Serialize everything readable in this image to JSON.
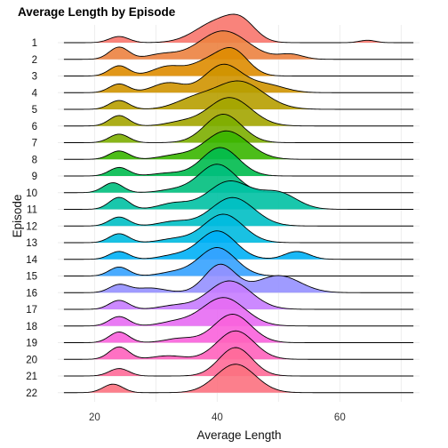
{
  "chart_data": {
    "type": "ridgeline",
    "title": "Average Length by Episode",
    "xlabel": "Average Length",
    "ylabel": "Episode",
    "xlim": [
      14,
      73
    ],
    "xticks": [
      20,
      40,
      60
    ],
    "grid": true,
    "legend": "none",
    "series": [
      {
        "name": "1",
        "color": "#F8766D",
        "components": [
          [
            24,
            1.6,
            0.18
          ],
          [
            40,
            3.5,
            0.6
          ],
          [
            44,
            2.3,
            0.45
          ],
          [
            64.5,
            1.3,
            0.07
          ]
        ]
      },
      {
        "name": "2",
        "color": "#EC8240",
        "components": [
          [
            24,
            1.6,
            0.3
          ],
          [
            31,
            2.5,
            0.12
          ],
          [
            41,
            4.0,
            0.7
          ],
          [
            52,
            2.0,
            0.12
          ]
        ]
      },
      {
        "name": "3",
        "color": "#DE8C00",
        "components": [
          [
            24,
            1.6,
            0.3
          ],
          [
            32,
            2.5,
            0.28
          ],
          [
            38,
            2.5,
            0.35
          ],
          [
            42.5,
            2.5,
            0.75
          ]
        ]
      },
      {
        "name": "4",
        "color": "#CF9400",
        "components": [
          [
            24,
            1.6,
            0.25
          ],
          [
            32,
            2.5,
            0.28
          ],
          [
            41,
            3.0,
            0.8
          ],
          [
            48,
            3.0,
            0.22
          ]
        ]
      },
      {
        "name": "5",
        "color": "#B79F00",
        "components": [
          [
            24,
            1.6,
            0.3
          ],
          [
            36,
            3.0,
            0.3
          ],
          [
            43.5,
            4.0,
            0.95
          ]
        ]
      },
      {
        "name": "6",
        "color": "#A3A500",
        "components": [
          [
            24,
            1.6,
            0.35
          ],
          [
            34,
            2.5,
            0.12
          ],
          [
            42,
            3.5,
            0.95
          ]
        ]
      },
      {
        "name": "7",
        "color": "#7CAE00",
        "components": [
          [
            24,
            1.6,
            0.3
          ],
          [
            41,
            3.0,
            1.0
          ]
        ]
      },
      {
        "name": "8",
        "color": "#39B600",
        "components": [
          [
            24,
            1.6,
            0.28
          ],
          [
            33,
            2.5,
            0.12
          ],
          [
            41.5,
            3.5,
            0.95
          ]
        ]
      },
      {
        "name": "9",
        "color": "#00BB4E",
        "components": [
          [
            24,
            1.6,
            0.3
          ],
          [
            32,
            2.5,
            0.1
          ],
          [
            40.5,
            3.0,
            1.0
          ]
        ]
      },
      {
        "name": "10",
        "color": "#00BF7D",
        "components": [
          [
            23,
            1.6,
            0.35
          ],
          [
            33,
            2.5,
            0.1
          ],
          [
            40,
            3.0,
            1.0
          ]
        ]
      },
      {
        "name": "11",
        "color": "#00C1A3",
        "components": [
          [
            24,
            1.6,
            0.3
          ],
          [
            33,
            2.5,
            0.15
          ],
          [
            42,
            3.5,
            0.7
          ],
          [
            50,
            3.0,
            0.4
          ]
        ]
      },
      {
        "name": "12",
        "color": "#00BFC4",
        "components": [
          [
            24,
            1.6,
            0.3
          ],
          [
            33,
            2.5,
            0.15
          ],
          [
            42.5,
            3.5,
            0.95
          ]
        ]
      },
      {
        "name": "13",
        "color": "#00BAE0",
        "components": [
          [
            24,
            1.6,
            0.3
          ],
          [
            33,
            2.5,
            0.12
          ],
          [
            41,
            3.2,
            0.95
          ]
        ]
      },
      {
        "name": "14",
        "color": "#00B0F6",
        "components": [
          [
            24,
            1.6,
            0.25
          ],
          [
            33,
            2.5,
            0.12
          ],
          [
            40,
            3.0,
            0.9
          ],
          [
            53,
            2.0,
            0.25
          ]
        ]
      },
      {
        "name": "15",
        "color": "#35A2FF",
        "components": [
          [
            24,
            1.6,
            0.3
          ],
          [
            33,
            2.5,
            0.12
          ],
          [
            40,
            3.0,
            0.95
          ]
        ]
      },
      {
        "name": "16",
        "color": "#9590FF",
        "components": [
          [
            24,
            1.6,
            0.25
          ],
          [
            29,
            2.5,
            0.15
          ],
          [
            40.5,
            2.5,
            0.9
          ],
          [
            50,
            3.5,
            0.55
          ]
        ]
      },
      {
        "name": "17",
        "color": "#C77CFF",
        "components": [
          [
            24,
            1.6,
            0.3
          ],
          [
            33,
            2.5,
            0.12
          ],
          [
            42,
            3.5,
            0.95
          ]
        ]
      },
      {
        "name": "18",
        "color": "#E76BF3",
        "components": [
          [
            24,
            1.6,
            0.3
          ],
          [
            33,
            2.5,
            0.12
          ],
          [
            41,
            3.5,
            0.9
          ]
        ]
      },
      {
        "name": "19",
        "color": "#FA62DB",
        "components": [
          [
            24,
            1.6,
            0.3
          ],
          [
            34,
            2.5,
            0.12
          ],
          [
            42.5,
            3.0,
            0.8
          ]
        ]
      },
      {
        "name": "20",
        "color": "#FF62BC",
        "components": [
          [
            24,
            1.6,
            0.35
          ],
          [
            32,
            2.5,
            0.1
          ],
          [
            43,
            3.0,
            0.8
          ]
        ]
      },
      {
        "name": "21",
        "color": "#FF6A98",
        "components": [
          [
            24,
            1.6,
            0.25
          ],
          [
            43,
            2.7,
            0.95
          ]
        ]
      },
      {
        "name": "22",
        "color": "#FC717F",
        "components": [
          [
            23,
            1.6,
            0.3
          ],
          [
            43,
            3.2,
            1.0
          ]
        ]
      }
    ]
  }
}
